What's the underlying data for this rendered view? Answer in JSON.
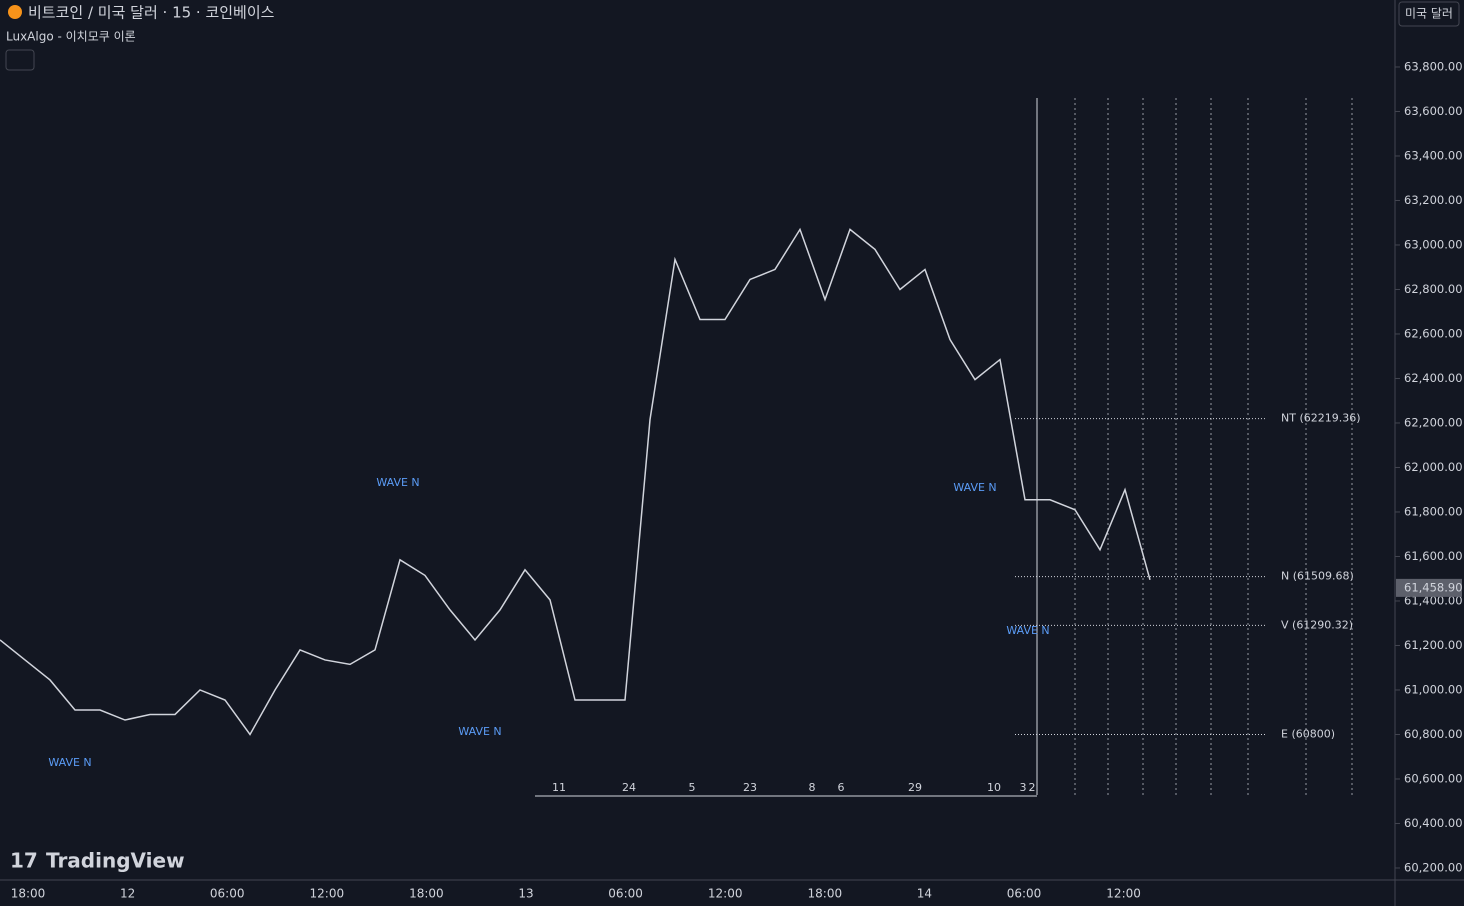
{
  "header": {
    "symbol": "비트코인 / 미국 달러 · 15 · 코인베이스",
    "indicator": "LuxAlgo - 이치모쿠 이론",
    "currency": "미국 달러",
    "brand": "TradingView"
  },
  "chart_data": {
    "type": "line",
    "x_labels": [
      "18:00",
      "12",
      "06:00",
      "12:00",
      "18:00",
      "13",
      "06:00",
      "12:00",
      "18:00",
      "14",
      "06:00",
      "12:00"
    ],
    "series": [
      {
        "name": "BTCUSD",
        "color": "#d1d4dc",
        "values": [
          61225,
          61135,
          61045,
          60910,
          60910,
          60865,
          60890,
          60890,
          61000,
          60955,
          60800,
          61000,
          61180,
          61135,
          61115,
          61180,
          61585,
          61515,
          61360,
          61225,
          61360,
          61540,
          61405,
          60955,
          60955,
          60955,
          62215,
          62935,
          62665,
          62665,
          62845,
          62890,
          63070,
          62755,
          63070,
          62980,
          62800,
          62890,
          62575,
          62395,
          62485,
          61855,
          61855,
          61810,
          61630,
          61900,
          61495
        ]
      }
    ],
    "ylim": [
      60146,
      64101
    ],
    "yticks": [
      {
        "value": 60200,
        "label": "60,200.00"
      },
      {
        "value": 60400,
        "label": "60,400.00"
      },
      {
        "value": 60600,
        "label": "60,600.00"
      },
      {
        "value": 60800,
        "label": "60,800.00"
      },
      {
        "value": 61000,
        "label": "61,000.00"
      },
      {
        "value": 61200,
        "label": "61,200.00"
      },
      {
        "value": 61400,
        "label": "61,400.00"
      },
      {
        "value": 61600,
        "label": "61,600.00"
      },
      {
        "value": 61800,
        "label": "61,800.00"
      },
      {
        "value": 62000,
        "label": "62,000.00"
      },
      {
        "value": 62200,
        "label": "62,200.00"
      },
      {
        "value": 62400,
        "label": "62,400.00"
      },
      {
        "value": 62600,
        "label": "62,600.00"
      },
      {
        "value": 62800,
        "label": "62,800.00"
      },
      {
        "value": 63000,
        "label": "63,000.00"
      },
      {
        "value": 63200,
        "label": "63,200.00"
      },
      {
        "value": 63400,
        "label": "63,400.00"
      },
      {
        "value": 63600,
        "label": "63,600.00"
      },
      {
        "value": 63800,
        "label": "63,800.00"
      }
    ],
    "last_price": {
      "value": 61458.9,
      "label": "61,458.90"
    },
    "levels": [
      {
        "label": "NT (62219.36)",
        "value": 62219.36
      },
      {
        "label": "N (61509.68)",
        "value": 61509.68
      },
      {
        "label": "V (61290.32)",
        "value": 61290.32
      },
      {
        "label": "E (60800)",
        "value": 60800
      }
    ],
    "wave_labels": [
      "WAVE N",
      "WAVE N",
      "WAVE N",
      "WAVE N",
      "WAVE N"
    ],
    "counts": [
      "11",
      "24",
      "5",
      "23",
      "8",
      "6",
      "29",
      "10",
      "3",
      "2"
    ]
  }
}
